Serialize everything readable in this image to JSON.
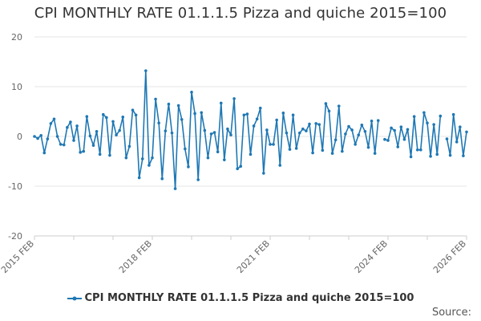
{
  "chart_data": {
    "type": "line",
    "title": "CPI MONTHLY RATE 01.1.1.5 Pizza and quiche 2015=100",
    "xlabel": "",
    "ylabel": "",
    "ylim": [
      -20,
      20
    ],
    "y_ticks": [
      -20,
      -10,
      0,
      10,
      20
    ],
    "x_range": [
      "2015 FEB",
      "2026 FEB"
    ],
    "x_tick_labels": [
      "2015 FEB",
      "2018 FEB",
      "2021 FEB",
      "2024 FEB",
      "2026 FEB"
    ],
    "legend_position": "bottom",
    "grid": true,
    "series": [
      {
        "name": "CPI MONTHLY RATE 01.1.1.5 Pizza and quiche 2015=100",
        "color": "#1f78b4",
        "start": "2015 FEB",
        "frequency": "monthly",
        "values": [
          0.0,
          -0.4,
          0.2,
          -3.3,
          -0.5,
          2.6,
          3.5,
          0.0,
          -1.6,
          -1.7,
          1.8,
          2.9,
          -0.8,
          2.1,
          -3.2,
          -3.0,
          4.0,
          0.1,
          -1.8,
          1.0,
          -3.6,
          4.4,
          3.8,
          -3.8,
          3.0,
          0.3,
          1.2,
          3.9,
          -4.3,
          -2.0,
          5.3,
          4.3,
          -8.3,
          -4.5,
          13.2,
          -5.8,
          -4.3,
          7.5,
          2.7,
          -8.5,
          1.1,
          6.5,
          0.7,
          -10.5,
          6.2,
          3.4,
          -2.5,
          -6.1,
          8.9,
          4.6,
          -8.7,
          4.8,
          1.2,
          -4.3,
          0.5,
          0.8,
          -3.1,
          6.7,
          -4.7,
          1.5,
          0.3,
          7.6,
          -6.5,
          -6.0,
          4.3,
          4.5,
          -3.6,
          2.1,
          3.5,
          5.7,
          -7.4,
          1.3,
          -1.6,
          -1.6,
          3.3,
          -5.8,
          4.7,
          0.7,
          -2.6,
          4.3,
          -2.4,
          0.7,
          1.5,
          1.1,
          2.5,
          -3.3,
          2.6,
          2.4,
          -2.8,
          6.6,
          5.1,
          -3.4,
          -0.7,
          6.1,
          -3.0,
          0.5,
          2.0,
          1.3,
          -1.6,
          0.3,
          2.3,
          1.0,
          -2.2,
          3.1,
          -3.4,
          3.2,
          null,
          -0.6,
          -0.8,
          1.7,
          1.2,
          -2.1,
          1.9,
          -0.6,
          1.4,
          -4.1,
          4.0,
          -2.7,
          -2.7,
          4.8,
          2.7,
          -4.0,
          2.4,
          -3.6,
          4.1,
          null,
          -0.5,
          -3.8,
          4.4,
          -1.1,
          1.9,
          -3.9,
          0.9
        ]
      }
    ]
  },
  "legend": {
    "label": "CPI MONTHLY RATE 01.1.1.5 Pizza and quiche 2015=100"
  },
  "footer": {
    "source_label": "Source:"
  }
}
